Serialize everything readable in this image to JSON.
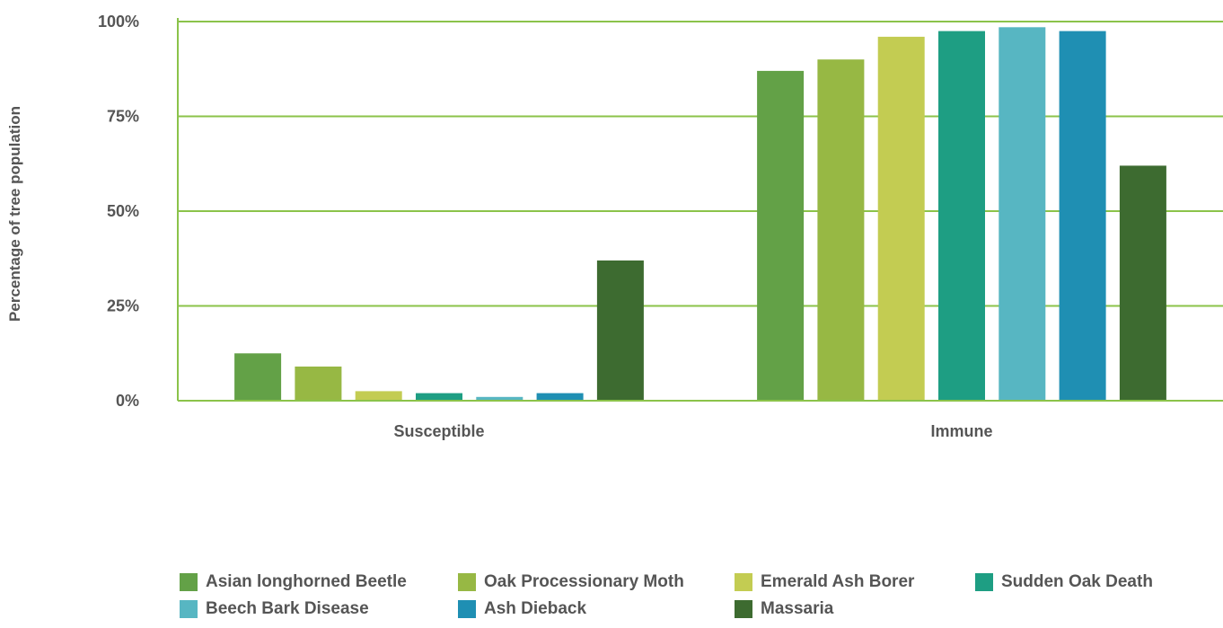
{
  "chart_data": {
    "type": "bar",
    "ylabel": "Percentage of tree population",
    "xlabel": "",
    "ylim": [
      0,
      100
    ],
    "yticks": [
      0,
      25,
      50,
      75,
      100
    ],
    "ytick_labels": [
      "0%",
      "25%",
      "50%",
      "75%",
      "100%"
    ],
    "categories": [
      "Susceptible",
      "Immune"
    ],
    "grid": "horizontal",
    "legend_position": "bottom",
    "series": [
      {
        "name": "Asian longhorned Beetle",
        "color": "#63a147",
        "values": [
          12.5,
          87
        ]
      },
      {
        "name": "Oak Processionary Moth",
        "color": "#97b844",
        "values": [
          9,
          90
        ]
      },
      {
        "name": "Emerald Ash Borer",
        "color": "#c3cc52",
        "values": [
          2.5,
          96
        ]
      },
      {
        "name": "Sudden Oak Death",
        "color": "#1e9e83",
        "values": [
          2,
          97.5
        ]
      },
      {
        "name": "Beech Bark Disease",
        "color": "#57b6c2",
        "values": [
          1,
          98.5
        ]
      },
      {
        "name": "Ash Dieback",
        "color": "#1f8fb3",
        "values": [
          2,
          97.5
        ]
      },
      {
        "name": "Massaria",
        "color": "#3d6b30",
        "values": [
          37,
          62
        ]
      }
    ]
  },
  "colors": {
    "grid": "#8bc34a",
    "text": "#555555"
  }
}
